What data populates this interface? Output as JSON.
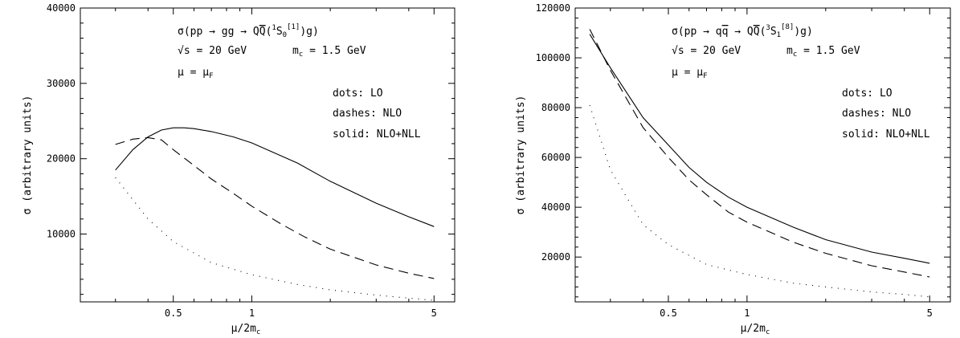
{
  "chart_data": [
    {
      "type": "line",
      "x_scale": "log",
      "xlim": [
        0.22,
        6.0
      ],
      "ylim": [
        1000,
        40000
      ],
      "xlabel": "μ/2m",
      "xlabel_sub": "c",
      "ylabel": "σ (arbitrary units)",
      "xticks_labeled": [
        0.5,
        1,
        5
      ],
      "xtick_labels": [
        "0.5",
        "1",
        "5"
      ],
      "yticks_labeled": [
        10000,
        20000,
        30000,
        40000
      ],
      "ytick_labels": [
        "10000",
        "20000",
        "30000",
        "40000"
      ],
      "annotations": {
        "process": {
          "pre": "σ(pp → gg → Q",
          "mid": "Q",
          "post": "(",
          "sup1": "1",
          "S": "S",
          "sub": "0",
          "sup2": "[1]",
          "end": ")g)"
        },
        "energy": "√s = 20 GeV",
        "mass_pre": "m",
        "mass_sub": "c",
        "mass_post": " = 1.5 GeV",
        "scale_pre": "μ = μ",
        "scale_sub": "F",
        "legend_lo": "dots: LO",
        "legend_nlo": "dashes: NLO",
        "legend_nll": "solid: NLO+NLL"
      },
      "series": [
        {
          "name": "LO",
          "style": "dotted",
          "x": [
            0.3,
            0.4,
            0.5,
            0.7,
            1.0,
            1.5,
            2.0,
            3.0,
            4.0,
            5.0
          ],
          "y": [
            17500,
            12000,
            9000,
            6200,
            4600,
            3300,
            2600,
            1900,
            1500,
            1200
          ]
        },
        {
          "name": "NLO",
          "style": "dashed",
          "x": [
            0.3,
            0.35,
            0.4,
            0.45,
            0.5,
            0.6,
            0.7,
            0.85,
            1.0,
            1.3,
            1.6,
            2.0,
            3.0,
            4.0,
            5.0
          ],
          "y": [
            21900,
            22600,
            22800,
            22500,
            21200,
            19100,
            17300,
            15400,
            13700,
            11300,
            9600,
            8000,
            5900,
            4800,
            4100
          ]
        },
        {
          "name": "NLO+NLL",
          "style": "solid",
          "x": [
            0.3,
            0.35,
            0.4,
            0.45,
            0.5,
            0.55,
            0.6,
            0.7,
            0.85,
            1.0,
            1.5,
            2.0,
            3.0,
            4.0,
            5.0
          ],
          "y": [
            18500,
            21200,
            22900,
            23800,
            24100,
            24100,
            24000,
            23600,
            22900,
            22100,
            19400,
            17000,
            14100,
            12300,
            11000
          ]
        }
      ]
    },
    {
      "type": "line",
      "x_scale": "log",
      "xlim": [
        0.22,
        6.0
      ],
      "ylim": [
        2000,
        120000
      ],
      "xlabel": "μ/2m",
      "xlabel_sub": "c",
      "ylabel": "σ (arbitrary units)",
      "xticks_labeled": [
        0.5,
        1,
        5
      ],
      "xtick_labels": [
        "0.5",
        "1",
        "5"
      ],
      "yticks_labeled": [
        20000,
        40000,
        60000,
        80000,
        100000,
        120000
      ],
      "ytick_labels": [
        "20000",
        "40000",
        "60000",
        "80000",
        "100000",
        "120000"
      ],
      "annotations": {
        "process": {
          "pre": "σ(pp → q",
          "mid": "q",
          "post": " → Q",
          "mid2": "Q",
          "paren": "(",
          "sup1": "3",
          "S": "S",
          "sub": "1",
          "sup2": "[8]",
          "end": ")g)"
        },
        "energy": "√s = 20 GeV",
        "mass_pre": "m",
        "mass_sub": "c",
        "mass_post": " = 1.5 GeV",
        "scale_pre": "μ = μ",
        "scale_sub": "F",
        "legend_lo": "dots: LO",
        "legend_nlo": "dashes: NLO",
        "legend_nll": "solid: NLO+NLL"
      },
      "series": [
        {
          "name": "LO",
          "style": "dotted",
          "x": [
            0.25,
            0.3,
            0.4,
            0.5,
            0.7,
            1.0,
            1.5,
            2.0,
            3.0,
            4.0,
            5.0
          ],
          "y": [
            81000,
            55000,
            33000,
            25000,
            17000,
            13000,
            9500,
            8000,
            6000,
            5000,
            4000
          ]
        },
        {
          "name": "NLO",
          "style": "dashed",
          "x": [
            0.25,
            0.3,
            0.4,
            0.5,
            0.6,
            0.7,
            0.85,
            1.0,
            1.5,
            2.0,
            3.0,
            4.0,
            5.0
          ],
          "y": [
            111500,
            95000,
            72000,
            60000,
            51000,
            45000,
            38000,
            34000,
            26000,
            21500,
            16500,
            14000,
            12000
          ]
        },
        {
          "name": "NLO+NLL",
          "style": "solid",
          "x": [
            0.25,
            0.3,
            0.4,
            0.5,
            0.6,
            0.7,
            0.85,
            1.0,
            1.5,
            2.0,
            3.0,
            4.0,
            5.0
          ],
          "y": [
            109500,
            96000,
            76000,
            65000,
            56000,
            50000,
            44000,
            40000,
            32000,
            27000,
            22000,
            19500,
            17500
          ]
        }
      ]
    }
  ]
}
